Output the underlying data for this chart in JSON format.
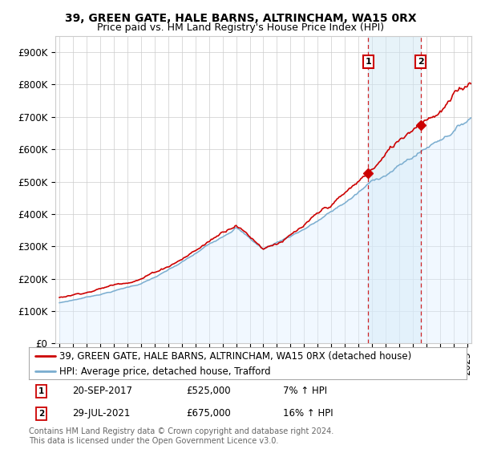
{
  "title": "39, GREEN GATE, HALE BARNS, ALTRINCHAM, WA15 0RX",
  "subtitle": "Price paid vs. HM Land Registry's House Price Index (HPI)",
  "ylabel_ticks": [
    "£0",
    "£100K",
    "£200K",
    "£300K",
    "£400K",
    "£500K",
    "£600K",
    "£700K",
    "£800K",
    "£900K"
  ],
  "ytick_values": [
    0,
    100000,
    200000,
    300000,
    400000,
    500000,
    600000,
    700000,
    800000,
    900000
  ],
  "ylim": [
    0,
    950000
  ],
  "xlim_start": 1994.7,
  "xlim_end": 2025.3,
  "sale1_date": 2017.72,
  "sale1_price": 525000,
  "sale2_date": 2021.57,
  "sale2_price": 675000,
  "sale1_text": "20-SEP-2017",
  "sale1_pct": "7% ↑ HPI",
  "sale2_text": "29-JUL-2021",
  "sale2_pct": "16% ↑ HPI",
  "line_color_house": "#cc0000",
  "line_color_hpi": "#7aadcf",
  "fill_color_between": "#d0e8f5",
  "fill_color_hpi_area": "#ddeeff",
  "legend_house": "39, GREEN GATE, HALE BARNS, ALTRINCHAM, WA15 0RX (detached house)",
  "legend_hpi": "HPI: Average price, detached house, Trafford",
  "footer": "Contains HM Land Registry data © Crown copyright and database right 2024.\nThis data is licensed under the Open Government Licence v3.0.",
  "background_color": "#ffffff",
  "grid_color": "#cccccc",
  "title_fontsize": 10,
  "subtitle_fontsize": 9,
  "tick_fontsize": 8.5,
  "legend_fontsize": 8.5,
  "footer_fontsize": 7
}
